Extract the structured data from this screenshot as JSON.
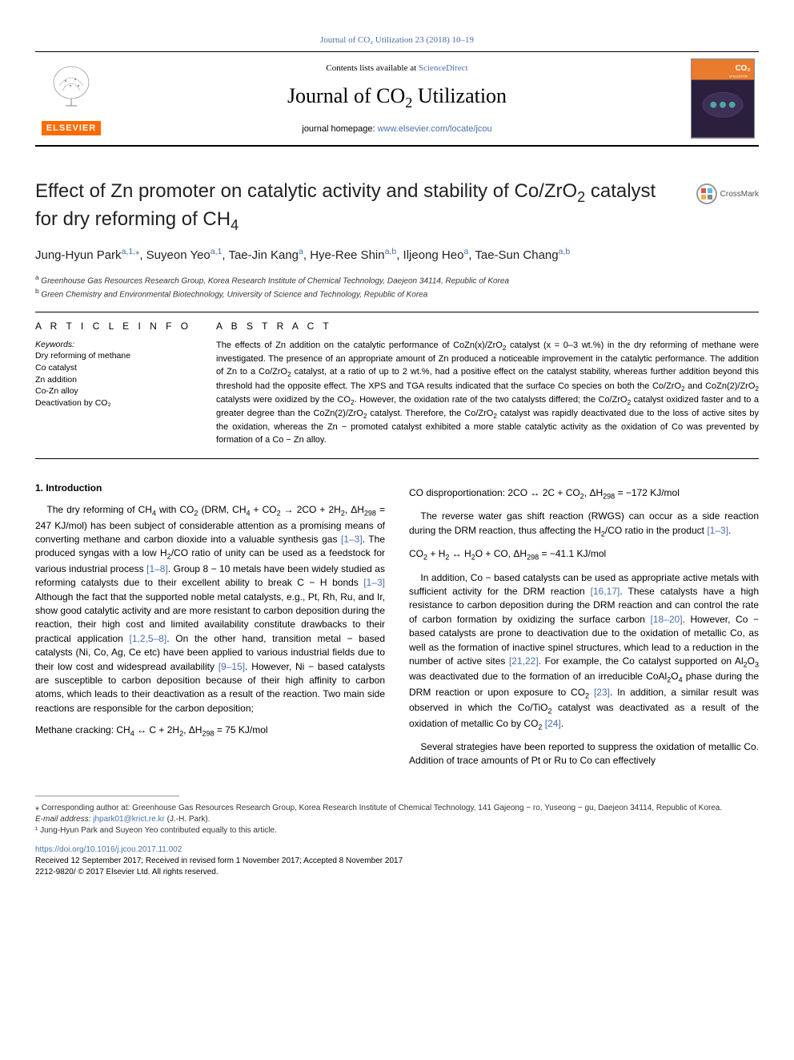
{
  "top_link": "Journal of CO₂ Utilization 23 (2018) 10–19",
  "header": {
    "contents_prefix": "Contents lists available at ",
    "contents_link": "ScienceDirect",
    "journal_title_pre": "Journal of CO",
    "journal_title_sub": "2",
    "journal_title_post": " Utilization",
    "homepage_prefix": "journal homepage: ",
    "homepage_url": "www.elsevier.com/locate/jcou",
    "elsevier_word": "ELSEVIER"
  },
  "cover": {
    "co2_label": "CO₂",
    "util_label": "UTILIZATION"
  },
  "article": {
    "title_html": "Effect of Zn promoter on catalytic activity and stability of Co/ZrO<sub>2</sub> catalyst for dry reforming of CH<sub>4</sub>",
    "crossmark": "CrossMark"
  },
  "authors": [
    {
      "name": "Jung-Hyun Park",
      "sup": "a,1,",
      "corr": true
    },
    {
      "name": "Suyeon Yeo",
      "sup": "a,1"
    },
    {
      "name": "Tae-Jin Kang",
      "sup": "a"
    },
    {
      "name": "Hye-Ree Shin",
      "sup": "a,b"
    },
    {
      "name": "Iljeong Heo",
      "sup": "a"
    },
    {
      "name": "Tae-Sun Chang",
      "sup": "a,b"
    }
  ],
  "affiliations": [
    {
      "key": "a",
      "text": "Greenhouse Gas Resources Research Group, Korea Research Institute of Chemical Technology, Daejeon 34114, Republic of Korea"
    },
    {
      "key": "b",
      "text": "Green Chemistry and Environmental Biotechnology, University of Science and Technology, Republic of Korea"
    }
  ],
  "info_head": "A R T I C L E   I N F O",
  "abs_head": "A B S T R A C T",
  "keywords_label": "Keywords:",
  "keywords": [
    "Dry reforming of methane",
    "Co catalyst",
    "Zn addition",
    "Co-Zn alloy",
    "Deactivation by CO₂"
  ],
  "abstract_html": "The effects of Zn addition on the catalytic performance of CoZn(x)/ZrO<sub>2</sub> catalyst (x = 0–3 wt.%) in the dry reforming of methane were investigated. The presence of an appropriate amount of Zn produced a noticeable improvement in the catalytic performance. The addition of Zn to a Co/ZrO<sub>2</sub> catalyst, at a ratio of up to 2 wt.%, had a positive effect on the catalyst stability, whereas further addition beyond this threshold had the opposite effect. The XPS and TGA results indicated that the surface Co species on both the Co/ZrO<sub>2</sub> and CoZn(2)/ZrO<sub>2</sub> catalysts were oxidized by the CO<sub>2</sub>. However, the oxidation rate of the two catalysts differed; the Co/ZrO<sub>2</sub> catalyst oxidized faster and to a greater degree than the CoZn(2)/ZrO<sub>2</sub> catalyst. Therefore, the Co/ZrO<sub>2</sub> catalyst was rapidly deactivated due to the loss of active sites by the oxidation, whereas the Zn − promoted catalyst exhibited a more stable catalytic activity as the oxidation of Co was prevented by formation of a Co − Zn alloy.",
  "body": {
    "section_title": "1. Introduction",
    "left_paragraphs": [
      "The dry reforming of CH<sub>4</sub> with CO<sub>2</sub> (DRM, CH<sub>4</sub> + CO<sub>2</sub> → 2CO + 2H<sub>2</sub>, ΔH<sub>298</sub> = 247 KJ/mol) has been subject of considerable attention as a promising means of converting methane and carbon dioxide into a valuable synthesis gas <span class=\"cite\">[1–3]</span>. The produced syngas with a low H<sub>2</sub>/CO ratio of unity can be used as a feedstock for various industrial process <span class=\"cite\">[1–8]</span>. Group 8 − 10 metals have been widely studied as reforming catalysts due to their excellent ability to break C − H bonds <span class=\"cite\">[1–3]</span> Although the fact that the supported noble metal catalysts, e.g., Pt, Rh, Ru, and Ir, show good catalytic activity and are more resistant to carbon deposition during the reaction, their high cost and limited availability constitute drawbacks to their practical application <span class=\"cite\">[1,2,5–8]</span>. On the other hand, transition metal − based catalysts (Ni, Co, Ag, Ce etc) have been applied to various industrial fields due to their low cost and widespread availability <span class=\"cite\">[9–15]</span>. However, Ni − based catalysts are susceptible to carbon deposition because of their high affinity to carbon atoms, which leads to their deactivation as a result of the reaction. Two main side reactions are responsible for the carbon deposition;"
    ],
    "left_eq": "Methane cracking: CH<sub>4</sub> ↔ C + 2H<sub>2</sub>, ΔH<sub>298</sub> = 75 KJ/mol",
    "right_eq1": "CO disproportionation: 2CO ↔ 2C + CO<sub>2</sub>, ΔH<sub>298</sub> = −172 KJ/mol",
    "right_p1": "The reverse water gas shift reaction (RWGS) can occur as a side reaction during the DRM reaction, thus affecting the H<sub>2</sub>/CO ratio in the product <span class=\"cite\">[1–3]</span>.",
    "right_eq2": "CO<sub>2</sub> + H<sub>2</sub> ↔ H<sub>2</sub>O + CO, ΔH<sub>298</sub> = −41.1 KJ/mol",
    "right_p2": "In addition, Co − based catalysts can be used as appropriate active metals with sufficient activity for the DRM reaction <span class=\"cite\">[16,17]</span>. These catalysts have a high resistance to carbon deposition during the DRM reaction and can control the rate of carbon formation by oxidizing the surface carbon <span class=\"cite\">[18–20]</span>. However, Co − based catalysts are prone to deactivation due to the oxidation of metallic Co, as well as the formation of inactive spinel structures, which lead to a reduction in the number of active sites <span class=\"cite\">[21,22]</span>. For example, the Co catalyst supported on Al<sub>2</sub>O<sub>3</sub> was deactivated due to the formation of an irreducible CoAl<sub>2</sub>O<sub>4</sub> phase during the DRM reaction or upon exposure to CO<sub>2</sub> <span class=\"cite\">[23]</span>. In addition, a similar result was observed in which the Co/TiO<sub>2</sub> catalyst was deactivated as a result of the oxidation of metallic Co by CO<sub>2</sub> <span class=\"cite\">[24]</span>.",
    "right_p3": "Several strategies have been reported to suppress the oxidation of metallic Co. Addition of trace amounts of Pt or Ru to Co can effectively"
  },
  "footnotes": {
    "corr": "⁎ Corresponding author at: Greenhouse Gas Resources Research Group, Korea Research Institute of Chemical Technology, 141 Gajeong − ro, Yuseong − gu, Daejeon 34114, Republic of Korea.",
    "email_label": "E-mail address: ",
    "email": "jhpark01@krict.re.kr",
    "email_suffix": " (J.-H. Park).",
    "equal": "¹ Jung-Hyun Park and Suyeon Yeo contributed equally to this article."
  },
  "doi": {
    "url": "https://doi.org/10.1016/j.jcou.2017.11.002",
    "received": "Received 12 September 2017; Received in revised form 1 November 2017; Accepted 8 November 2017",
    "issn": "2212-9820/ © 2017 Elsevier Ltd. All rights reserved."
  },
  "colors": {
    "link": "#4b6faa",
    "elsevier_orange": "#ff6b00",
    "cover_bg": "#2a1f3d",
    "cover_orange": "#e87b2e",
    "cover_teal": "#4ba8a0"
  }
}
